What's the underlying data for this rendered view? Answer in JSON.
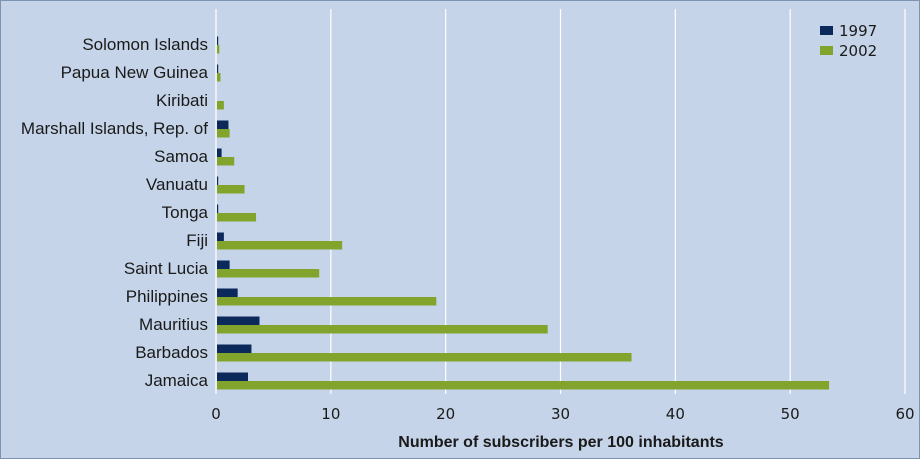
{
  "chart_data": {
    "type": "bar",
    "orientation": "horizontal",
    "categories": [
      "Solomon Islands",
      "Papua New Guinea",
      "Kiribati",
      "Marshall Islands, Rep. of",
      "Samoa",
      "Vanuatu",
      "Tonga",
      "Fiji",
      "Saint Lucia",
      "Philippines",
      "Mauritius",
      "Barbados",
      "Jamaica"
    ],
    "series": [
      {
        "name": "1997",
        "color": "#0b2a5b",
        "values": [
          0.1,
          0.1,
          0,
          1.0,
          0.4,
          0.1,
          0.1,
          0.6,
          1.1,
          1.8,
          3.7,
          3.0,
          2.7
        ]
      },
      {
        "name": "2002",
        "color": "#82a42d",
        "values": [
          0.2,
          0.3,
          0.6,
          1.1,
          1.5,
          2.4,
          3.4,
          10.9,
          8.9,
          19.1,
          28.8,
          36.1,
          53.3
        ]
      }
    ],
    "title": "",
    "xlabel": "Number of subscribers per 100 inhabitants",
    "ylabel": "",
    "xlim": [
      0,
      60
    ],
    "xticks": [
      0,
      10,
      20,
      30,
      40,
      50,
      60
    ],
    "grid": "vertical",
    "legend_position": "top-right",
    "colors": {
      "background": "#c5d4e8",
      "gridline": "#ffffff",
      "border": "#7d93b3"
    }
  }
}
